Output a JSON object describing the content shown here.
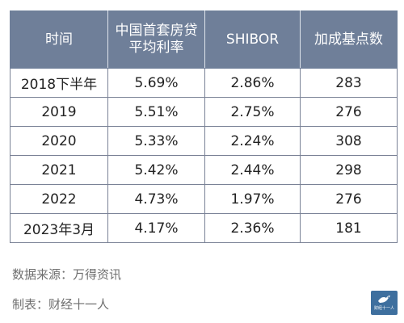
{
  "table": {
    "headers": [
      "时间",
      "中国首套房贷平均利率",
      "SHIBOR",
      "加成基点数"
    ],
    "rows": [
      [
        "2018下半年",
        "5.69%",
        "2.86%",
        "283"
      ],
      [
        "2019",
        "5.51%",
        "2.75%",
        "276"
      ],
      [
        "2020",
        "5.33%",
        "2.24%",
        "308"
      ],
      [
        "2021",
        "5.42%",
        "2.44%",
        "298"
      ],
      [
        "2022",
        "4.73%",
        "1.97%",
        "276"
      ],
      [
        "2023年3月",
        "4.17%",
        "2.36%",
        "181"
      ]
    ]
  },
  "footer": {
    "source": "数据来源：万得资讯",
    "maker": "制表：财经十一人"
  },
  "watermark": {
    "text": "财经十一人",
    "color": "#3e6f9e"
  },
  "colors": {
    "header_bg": "#6f7f99",
    "border": "#7a8296"
  }
}
